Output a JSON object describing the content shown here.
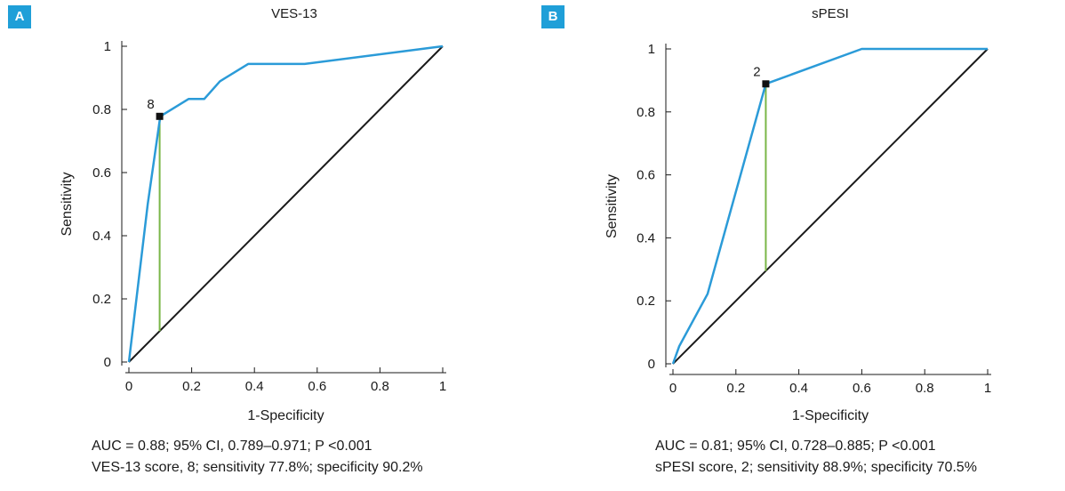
{
  "chart_data": [
    {
      "type": "line",
      "panel_label": "A",
      "title": "VES-13",
      "xlabel": "1-Specificity",
      "ylabel": "Sensitivity",
      "xlim": [
        0,
        1
      ],
      "ylim": [
        0,
        1
      ],
      "xticks": [
        "0",
        "0.2",
        "0.4",
        "0.6",
        "0.8",
        "1"
      ],
      "yticks": [
        "0",
        "0.2",
        "0.4",
        "0.6",
        "0.8",
        "1"
      ],
      "grid": false,
      "series": [
        {
          "x": [
            0,
            0.06,
            0.1,
            0.19,
            0.24,
            0.29,
            0.38,
            0.56,
            1
          ],
          "y": [
            0,
            0.5,
            0.778,
            0.833,
            0.833,
            0.889,
            0.944,
            0.944,
            1
          ]
        }
      ],
      "reference_line": {
        "x": [
          0,
          1
        ],
        "y": [
          0,
          1
        ]
      },
      "cutoff": {
        "label": "8",
        "x": 0.098,
        "y": 0.778,
        "drop_to_y": 0.098
      },
      "caption": {
        "line1": "AUC = 0.88; 95% CI, 0.789–0.971; P <0.001",
        "line2": "VES-13 score, 8; sensitivity 77.8%; specificity 90.2%"
      },
      "colors": {
        "roc": "#2b9bd8",
        "reference": "#1a1a1a",
        "cutoff": "#7ab648",
        "marker": "#111111"
      }
    },
    {
      "type": "line",
      "panel_label": "B",
      "title": "sPESI",
      "xlabel": "1-Specificity",
      "ylabel": "Sensitivity",
      "xlim": [
        0,
        1
      ],
      "ylim": [
        0,
        1
      ],
      "xticks": [
        "0",
        "0.2",
        "0.4",
        "0.6",
        "0.8",
        "1"
      ],
      "yticks": [
        "0",
        "0.2",
        "0.4",
        "0.6",
        "0.8",
        "1"
      ],
      "grid": false,
      "series": [
        {
          "x": [
            0,
            0.02,
            0.11,
            0.295,
            0.6,
            1
          ],
          "y": [
            0,
            0.056,
            0.222,
            0.889,
            1,
            1
          ]
        }
      ],
      "reference_line": {
        "x": [
          0,
          1
        ],
        "y": [
          0,
          1
        ]
      },
      "cutoff": {
        "label": "2",
        "x": 0.295,
        "y": 0.889,
        "drop_to_y": 0.295
      },
      "caption": {
        "line1": "AUC = 0.81; 95% CI, 0.728–0.885; P <0.001",
        "line2": "sPESI score, 2; sensitivity 88.9%; specificity 70.5%"
      },
      "colors": {
        "roc": "#2b9bd8",
        "reference": "#1a1a1a",
        "cutoff": "#7ab648",
        "marker": "#111111"
      }
    }
  ]
}
